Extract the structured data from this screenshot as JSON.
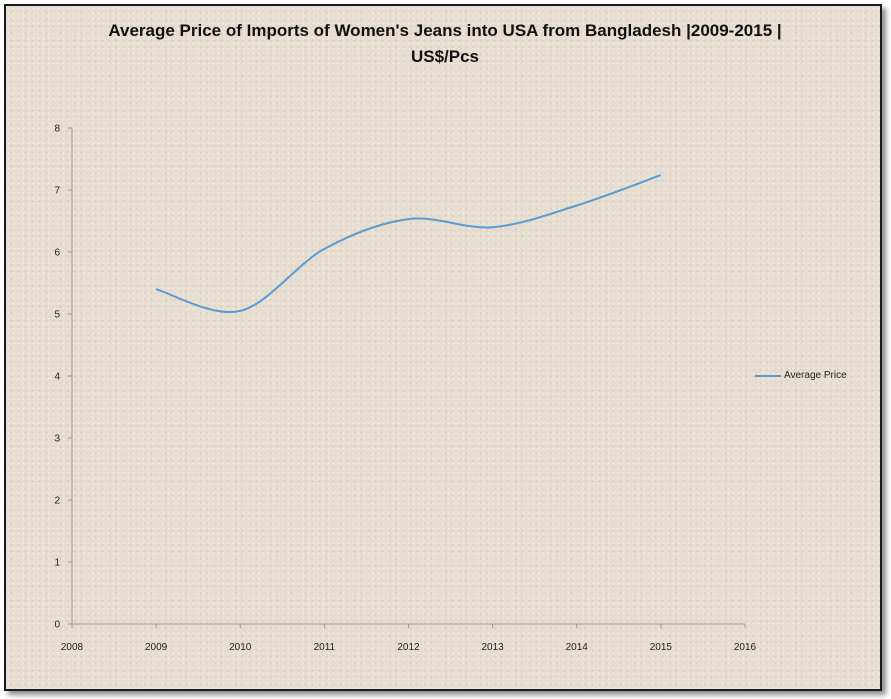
{
  "chart_data": {
    "type": "line",
    "title": "Average Price of Imports of Women's Jeans into USA from Bangladesh  |2009-2015 | US$/Pcs",
    "xlabel": "",
    "ylabel": "",
    "xlim": [
      2008,
      2016
    ],
    "ylim": [
      0,
      8
    ],
    "x_ticks": [
      2008,
      2009,
      2010,
      2011,
      2012,
      2013,
      2014,
      2015,
      2016
    ],
    "y_ticks": [
      0,
      1,
      2,
      3,
      4,
      5,
      6,
      7,
      8
    ],
    "smoothed": true,
    "grid": false,
    "legend_position": "right",
    "series": [
      {
        "name": "Average Price",
        "color": "#5b9bd5",
        "x": [
          2009,
          2010,
          2011,
          2012,
          2013,
          2014,
          2015
        ],
        "values": [
          5.4,
          5.05,
          6.05,
          6.53,
          6.4,
          6.75,
          7.24
        ]
      }
    ]
  }
}
